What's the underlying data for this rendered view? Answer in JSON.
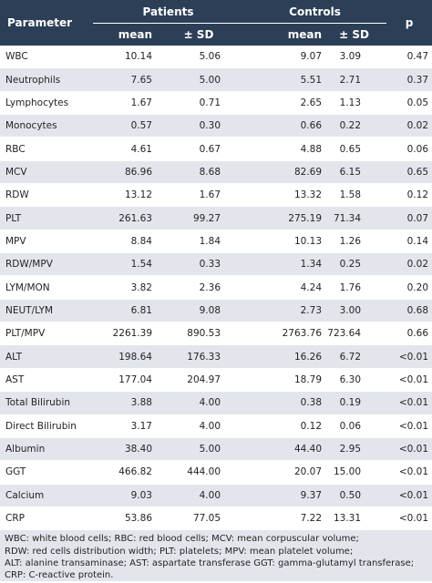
{
  "header": {
    "parameter": "Parameter",
    "patients": "Patients",
    "controls": "Controls",
    "p": "p",
    "mean": "mean",
    "sd": "± SD"
  },
  "rows": [
    {
      "name": "WBC",
      "p_mean": "10.14",
      "p_sd": "5.06",
      "c_mean": "9.07",
      "c_sd": "3.09",
      "p": "0.47"
    },
    {
      "name": "Neutrophils",
      "p_mean": "7.65",
      "p_sd": "5.00",
      "c_mean": "5.51",
      "c_sd": "2.71",
      "p": "0.37"
    },
    {
      "name": "Lymphocytes",
      "p_mean": "1.67",
      "p_sd": "0.71",
      "c_mean": "2.65",
      "c_sd": "1.13",
      "p": "0.05"
    },
    {
      "name": "Monocytes",
      "p_mean": "0.57",
      "p_sd": "0.30",
      "c_mean": "0.66",
      "c_sd": "0.22",
      "p": "0.02"
    },
    {
      "name": "RBC",
      "p_mean": "4.61",
      "p_sd": "0.67",
      "c_mean": "4.88",
      "c_sd": "0.65",
      "p": "0.06"
    },
    {
      "name": "MCV",
      "p_mean": "86.96",
      "p_sd": "8.68",
      "c_mean": "82.69",
      "c_sd": "6.15",
      "p": "0.65"
    },
    {
      "name": "RDW",
      "p_mean": "13.12",
      "p_sd": "1.67",
      "c_mean": "13.32",
      "c_sd": "1.58",
      "p": "0.12"
    },
    {
      "name": "PLT",
      "p_mean": "261.63",
      "p_sd": "99.27",
      "c_mean": "275.19",
      "c_sd": "71.34",
      "p": "0.07"
    },
    {
      "name": "MPV",
      "p_mean": "8.84",
      "p_sd": "1.84",
      "c_mean": "10.13",
      "c_sd": "1.26",
      "p": "0.14"
    },
    {
      "name": "RDW/MPV",
      "p_mean": "1.54",
      "p_sd": "0.33",
      "c_mean": "1.34",
      "c_sd": "0.25",
      "p": "0.02"
    },
    {
      "name": "LYM/MON",
      "p_mean": "3.82",
      "p_sd": "2.36",
      "c_mean": "4.24",
      "c_sd": "1.76",
      "p": "0.20"
    },
    {
      "name": "NEUT/LYM",
      "p_mean": "6.81",
      "p_sd": "9.08",
      "c_mean": "2.73",
      "c_sd": "3.00",
      "p": "0.68"
    },
    {
      "name": "PLT/MPV",
      "p_mean": "2261.39",
      "p_sd": "890.53",
      "c_mean": "2763.76",
      "c_sd": "723.64",
      "p": "0.66"
    },
    {
      "name": "ALT",
      "p_mean": "198.64",
      "p_sd": "176.33",
      "c_mean": "16.26",
      "c_sd": "6.72",
      "p": "<0.01"
    },
    {
      "name": "AST",
      "p_mean": "177.04",
      "p_sd": "204.97",
      "c_mean": "18.79",
      "c_sd": "6.30",
      "p": "<0.01"
    },
    {
      "name": "Total Bilirubin",
      "p_mean": "3.88",
      "p_sd": "4.00",
      "c_mean": "0.38",
      "c_sd": "0.19",
      "p": "<0.01"
    },
    {
      "name": "Direct Bilirubin",
      "p_mean": "3.17",
      "p_sd": "4.00",
      "c_mean": "0.12",
      "c_sd": "0.06",
      "p": "<0.01"
    },
    {
      "name": "Albumin",
      "p_mean": "38.40",
      "p_sd": "5.00",
      "c_mean": "44.40",
      "c_sd": "2.95",
      "p": "<0.01"
    },
    {
      "name": "GGT",
      "p_mean": "466.82",
      "p_sd": "444.00",
      "c_mean": "20.07",
      "c_sd": "15.00",
      "p": "<0.01"
    },
    {
      "name": "Calcium",
      "p_mean": "9.03",
      "p_sd": "4.00",
      "c_mean": "9.37",
      "c_sd": "0.50",
      "p": "<0.01"
    },
    {
      "name": "CRP",
      "p_mean": "53.86",
      "p_sd": "77.05",
      "c_mean": "7.22",
      "c_sd": "13.31",
      "p": "<0.01"
    }
  ],
  "footnote": [
    "WBC: white blood cells; RBC: red blood cells; MCV: mean corpuscular volume;",
    "RDW: red cells distribution width; PLT: platelets; MPV: mean platelet volume;",
    "ALT: alanine transaminase; AST: aspartate transferase GGT: gamma-glutamyl transferase;",
    "CRP: C-reactive protein."
  ]
}
